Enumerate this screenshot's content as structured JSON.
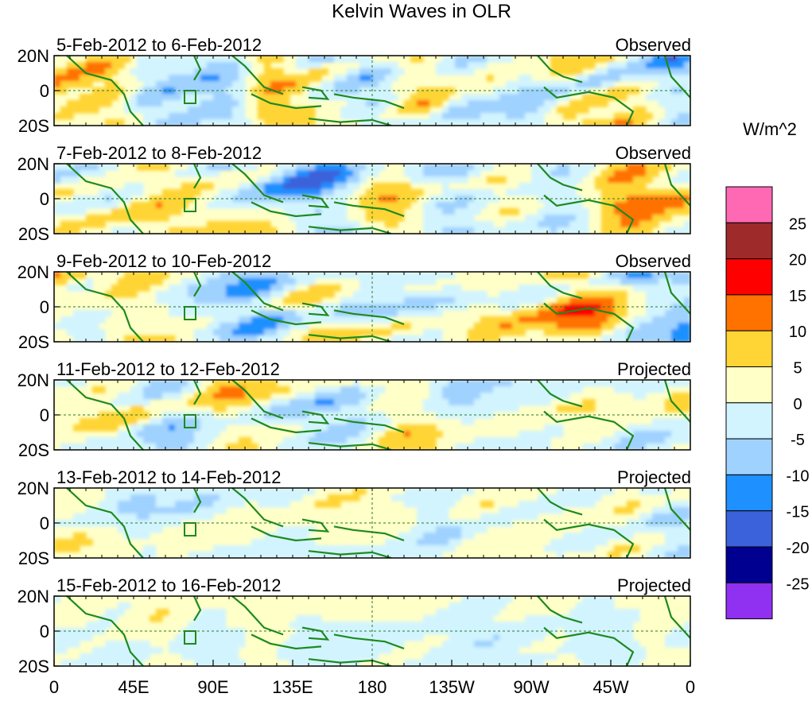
{
  "chart_data": {
    "type": "heatmap",
    "title": "Kelvin Waves in OLR",
    "xlabel": "",
    "ylabel": "",
    "x_ticks": [
      "0",
      "45E",
      "90E",
      "135E",
      "180",
      "135W",
      "90W",
      "45W",
      "0"
    ],
    "y_ticks": [
      "20N",
      "0",
      "20S"
    ],
    "colorbar": {
      "unit": "W/m^2",
      "levels": [
        25,
        20,
        15,
        10,
        5,
        0,
        -5,
        -10,
        -15,
        -20,
        -25
      ],
      "colors": [
        "#ff69b4",
        "#9e2a2a",
        "#ff0000",
        "#ff7200",
        "#ffd435",
        "#ffffc8",
        "#d2f4ff",
        "#a0d2ff",
        "#1e90ff",
        "#3b62db",
        "#000090",
        "#9030f0"
      ]
    },
    "panels": [
      {
        "date": "5-Feb-2012 to 6-Feb-2012",
        "label": "Observed"
      },
      {
        "date": "7-Feb-2012 to 8-Feb-2012",
        "label": "Observed"
      },
      {
        "date": "9-Feb-2012 to 10-Feb-2012",
        "label": "Observed"
      },
      {
        "date": "11-Feb-2012 to 12-Feb-2012",
        "label": "Projected"
      },
      {
        "date": "13-Feb-2012 to 14-Feb-2012",
        "label": "Projected"
      },
      {
        "date": "15-Feb-2012 to 16-Feb-2012",
        "label": "Projected"
      }
    ]
  }
}
